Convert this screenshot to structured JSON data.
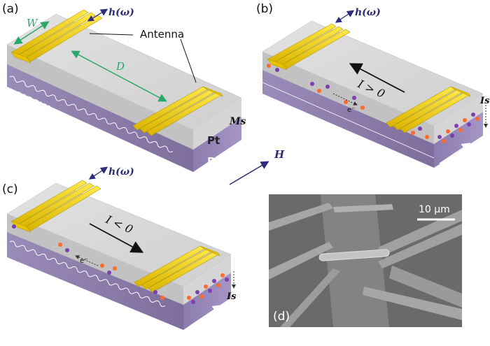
{
  "panels": {
    "a": {
      "label": "(a)",
      "h_omega": "h(ω)",
      "antenna_label": "Antenna",
      "width_label": "W",
      "distance_label": "D",
      "mssw_label": "MSSW",
      "pt_label": "Pt",
      "py_label": "Py",
      "ms_label": "Ms"
    },
    "b": {
      "label": "(b)",
      "h_omega": "h(ω)",
      "current_label": "I > 0",
      "electron_label": "e⁻",
      "is_label": "Is"
    },
    "c": {
      "label": "(c)",
      "h_omega": "h(ω)",
      "current_label": "I < 0",
      "electron_label": "e⁻",
      "is_label": "Is"
    },
    "d": {
      "label": "(d)",
      "scale_label": "10 μm"
    }
  },
  "field_label": "H",
  "colors": {
    "pt_top": "#d8d8d8",
    "pt_side": "#c9c9c9",
    "py_side": "#8a7aa8",
    "antenna": "#f0d20a",
    "green_dim": "#2aa86a",
    "arrow_blue": "#2c2c7a",
    "spin_orange": "#ff6a2a",
    "spin_purple": "#7a3fb0",
    "sem_bg": "#6a6a6a"
  }
}
